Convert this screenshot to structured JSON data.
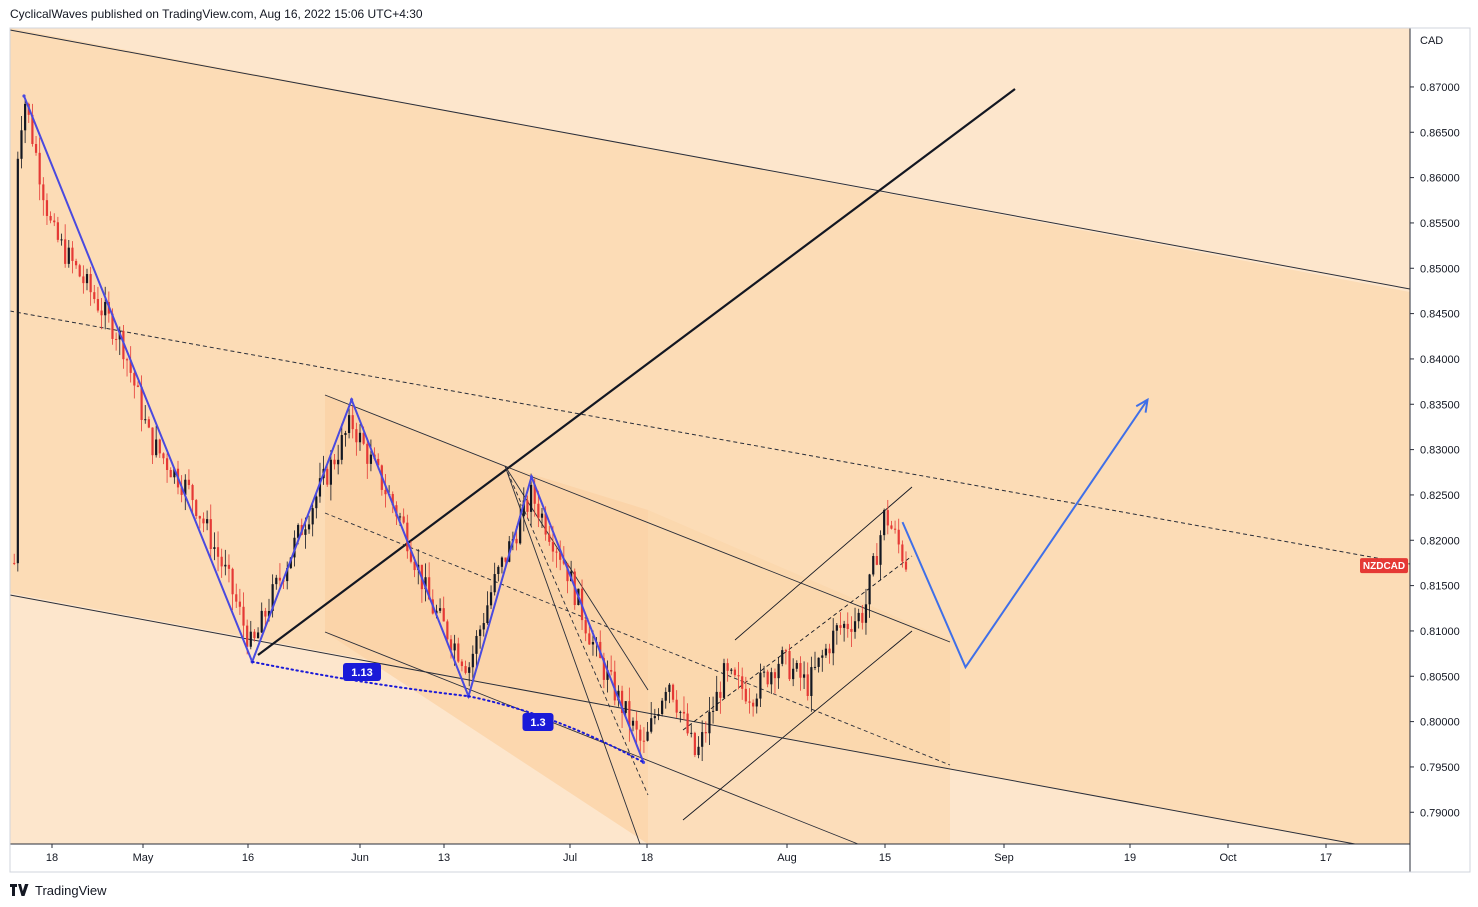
{
  "header": {
    "publisher": "CyclicalWaves published on TradingView.com, Aug 16, 2022 15:06 UTC+4:30"
  },
  "footer": {
    "brand": "TradingView"
  },
  "colors": {
    "background_outer": "#fde6cc",
    "channel_fill": "#fcdcb6",
    "inner_fill": "#fbd2a4",
    "candle_up": "#131722",
    "candle_down": "#e53935",
    "wave_line": "#4a4adf",
    "projection_line": "#3f6fe8",
    "symbol_tag": "#e53935",
    "ratio_badge": "#1a1ad8"
  },
  "chart_data": {
    "type": "candlestick",
    "symbol": "NZDCAD",
    "currency": "CAD",
    "y_ticks": [
      0.87,
      0.865,
      0.86,
      0.855,
      0.85,
      0.845,
      0.84,
      0.835,
      0.83,
      0.825,
      0.82,
      0.815,
      0.81,
      0.805,
      0.8,
      0.795,
      0.79
    ],
    "y_tick_labels": [
      "0.87000",
      "0.86500",
      "0.86000",
      "0.85500",
      "0.85000",
      "0.84500",
      "0.84000",
      "0.83500",
      "0.83000",
      "0.82500",
      "0.82000",
      "0.81500",
      "0.81000",
      "0.80500",
      "0.80000",
      "0.79500",
      "0.79000"
    ],
    "ylim": [
      0.7865,
      0.8765
    ],
    "x_tick_labels": [
      "18",
      "May",
      "16",
      "Jun",
      "13",
      "Jul",
      "18",
      "Aug",
      "15",
      "Sep",
      "19",
      "Oct",
      "17"
    ],
    "x_tick_days": [
      4,
      17,
      32,
      48,
      60,
      78,
      89,
      109,
      123,
      140,
      158,
      172,
      186
    ],
    "x_axis_day_zero": "Apr 14",
    "xlim": [
      -2,
      198
    ],
    "wave_points": [
      {
        "day": 0,
        "price": 0.869
      },
      {
        "day": 32.6,
        "price": 0.8066
      },
      {
        "day": 46.8,
        "price": 0.8355
      },
      {
        "day": 63.5,
        "price": 0.8028
      },
      {
        "day": 72.5,
        "price": 0.827
      },
      {
        "day": 88.5,
        "price": 0.7955
      }
    ],
    "projection_points": [
      {
        "day": 125.5,
        "price": 0.822
      },
      {
        "day": 134.5,
        "price": 0.806
      },
      {
        "day": 160.5,
        "price": 0.8355
      }
    ],
    "ratio_labels": [
      {
        "text": "1.13"
      },
      {
        "text": "1.3"
      }
    ],
    "last_price": 0.8172,
    "grid": false
  }
}
